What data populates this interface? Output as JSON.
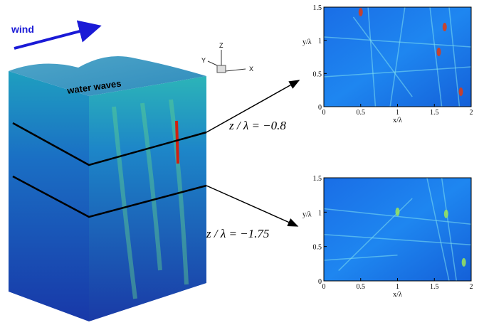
{
  "wind": "wind",
  "surface_label": "water waves",
  "axes_icon": {
    "x": "X",
    "y": "Y",
    "z": "Z"
  },
  "slices": [
    {
      "label": "z / λ = −0.8",
      "panel": {
        "xlabel": "x/λ",
        "ylabel": "y/λ",
        "xticks": [
          0,
          0.5,
          1,
          1.5,
          2
        ],
        "yticks": [
          0,
          0.5,
          1,
          1.5
        ]
      }
    },
    {
      "label": "z / λ = −1.75",
      "panel": {
        "xlabel": "x/λ",
        "ylabel": "y/λ",
        "xticks": [
          0,
          0.5,
          1,
          1.5,
          2
        ],
        "yticks": [
          0,
          0.5,
          1,
          1.5
        ]
      }
    }
  ]
}
